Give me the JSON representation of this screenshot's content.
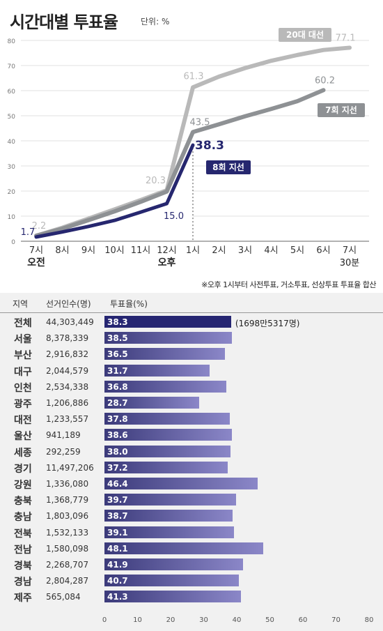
{
  "header": {
    "title": "시간대별 투표율",
    "unit": "단위: %"
  },
  "note": "※오후 1시부터 사전투표, 거소투표, 선상투표 투표율 합산",
  "colors": {
    "s20": "#b9b9b9",
    "s7": "#8e9194",
    "s8": "#26276f",
    "bar_dark": "#262672",
    "bar_grad_start": "#3b3a7a",
    "bar_grad_end": "#8b87c8"
  },
  "chart_data": [
    {
      "type": "line",
      "x": [
        "7시",
        "8시",
        "9시",
        "10시",
        "11시",
        "12시",
        "1시",
        "2시",
        "3시",
        "4시",
        "5시",
        "6시",
        "7시"
      ],
      "x_sub": [
        "오전",
        "",
        "",
        "",
        "",
        "오후",
        "",
        "",
        "",
        "",
        "",
        "",
        "30분"
      ],
      "ylim": [
        0,
        80
      ],
      "yticks": [
        0,
        10,
        20,
        30,
        40,
        50,
        60,
        70,
        80
      ],
      "series": [
        {
          "name": "20대 대선",
          "values": [
            2.2,
            5.4,
            9.0,
            12.7,
            16.4,
            20.3,
            61.3,
            65.6,
            69.0,
            71.9,
            74.2,
            76.2,
            77.1
          ],
          "labels": [
            "2.2",
            "",
            "",
            "",
            "",
            "20.3",
            "61.3",
            "",
            "",
            "",
            "",
            "",
            "77.1"
          ]
        },
        {
          "name": "7회 지선",
          "values": [
            2.2,
            5.0,
            8.4,
            11.9,
            15.7,
            19.8,
            43.5,
            46.6,
            49.8,
            52.7,
            55.8,
            60.2,
            null
          ],
          "labels": [
            "",
            "",
            "",
            "",
            "",
            "",
            "43.5",
            "",
            "",
            "",
            "",
            "60.2",
            ""
          ]
        },
        {
          "name": "8회 지선",
          "values": [
            1.7,
            3.7,
            5.9,
            8.3,
            11.6,
            15.0,
            38.3,
            null,
            null,
            null,
            null,
            null,
            null
          ],
          "labels": [
            "1.7",
            "",
            "",
            "",
            "",
            "15.0",
            "38.3",
            "",
            "",
            "",
            "",
            "",
            ""
          ]
        }
      ]
    },
    {
      "type": "bar",
      "columns": [
        "지역",
        "선거인수(명)",
        "투표율(%)"
      ],
      "categories": [
        "전체",
        "서울",
        "부산",
        "대구",
        "인천",
        "광주",
        "대전",
        "울산",
        "세종",
        "경기",
        "강원",
        "충북",
        "충남",
        "전북",
        "전남",
        "경북",
        "경남",
        "제주"
      ],
      "population": [
        "44,303,449",
        "8,378,339",
        "2,916,832",
        "2,044,579",
        "2,534,338",
        "1,206,886",
        "1,233,557",
        "941,189",
        "292,259",
        "11,497,206",
        "1,336,080",
        "1,368,779",
        "1,803,096",
        "1,532,133",
        "1,580,098",
        "2,268,707",
        "2,804,287",
        "565,084"
      ],
      "values": [
        38.3,
        38.5,
        36.5,
        31.7,
        36.8,
        28.7,
        37.8,
        38.6,
        38.0,
        37.2,
        46.4,
        39.7,
        38.7,
        39.1,
        48.1,
        41.9,
        40.7,
        41.3
      ],
      "value_labels": [
        "38.3",
        "38.5",
        "36.5",
        "31.7",
        "36.8",
        "28.7",
        "37.8",
        "38.6",
        "38.0",
        "37.2",
        "46.4",
        "39.7",
        "38.7",
        "39.1",
        "48.1",
        "41.9",
        "40.7",
        "41.3"
      ],
      "total_extra": "(1698만5317명)",
      "xlim": [
        0,
        80
      ],
      "xticks": [
        0,
        10,
        20,
        30,
        40,
        50,
        60,
        70,
        80
      ]
    }
  ]
}
